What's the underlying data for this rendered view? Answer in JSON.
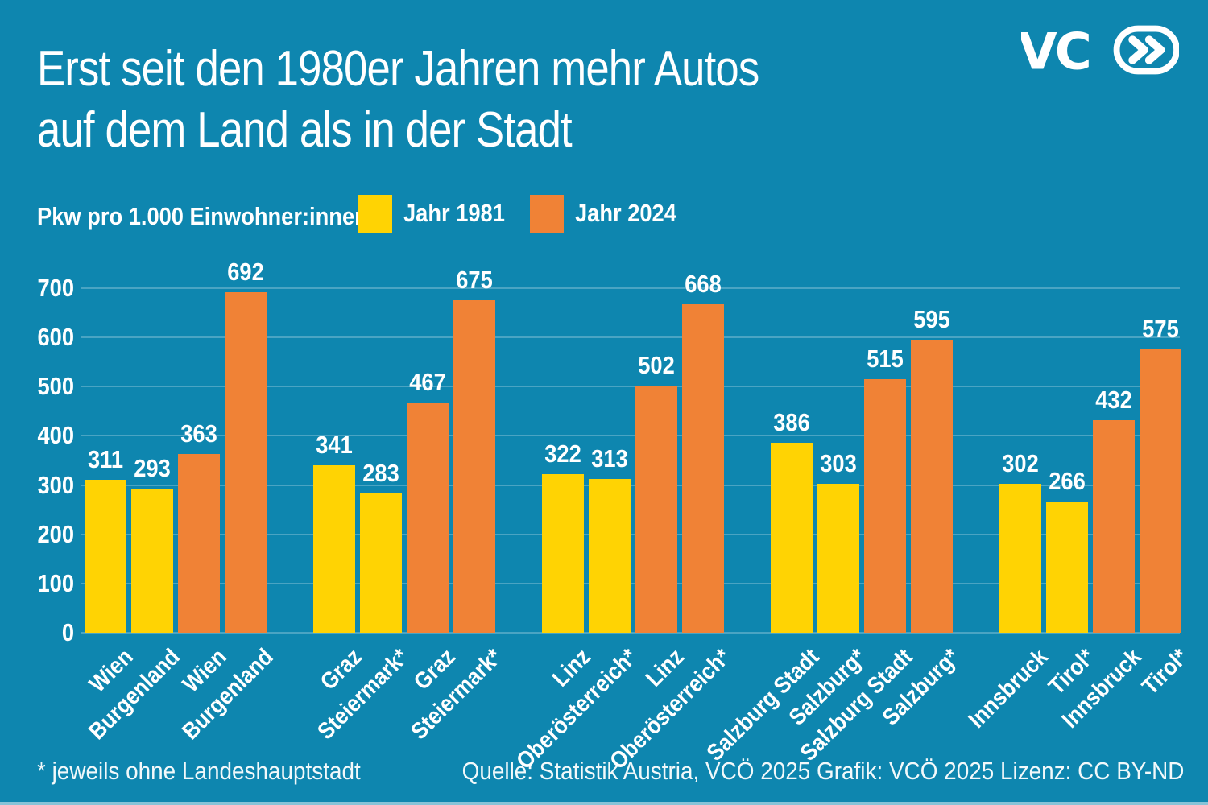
{
  "title": {
    "line1": "Erst seit den 1980er Jahren mehr Autos",
    "line2": "auf dem Land als in der Stadt"
  },
  "logo": {
    "text": "VC",
    "icon": "double-chevron-right-in-pill"
  },
  "legend": {
    "axis_label": "Pkw pro 1.000 Einwohner:innen",
    "items": [
      {
        "label": "Jahr 1981",
        "color": "#FFD303"
      },
      {
        "label": "Jahr 2024",
        "color": "#F08236"
      }
    ]
  },
  "footer": {
    "footnote": "* jeweils ohne Landeshauptstadt",
    "source": "Quelle: Statistik Austria, VCÖ 2025 Grafik: VCÖ 2025 Lizenz: CC BY-ND"
  },
  "colors": {
    "background": "#0E86AF",
    "gridline": "rgba(255,255,255,0.25)",
    "bar_1981": "#FFD303",
    "bar_2024": "#F08236",
    "text": "#FFFFFF"
  },
  "chart_data": {
    "type": "bar",
    "title": "Erst seit den 1980er Jahren mehr Autos auf dem Land als in der Stadt",
    "ylabel": "Pkw pro 1.000 Einwohner:innen",
    "xlabel": "",
    "ylim": [
      0,
      700
    ],
    "yticks": [
      0,
      100,
      200,
      300,
      400,
      500,
      600,
      700
    ],
    "grid": true,
    "legend_position": "top",
    "series": [
      {
        "name": "Jahr 1981",
        "color": "#FFD303"
      },
      {
        "name": "Jahr 2024",
        "color": "#F08236"
      }
    ],
    "groups": [
      {
        "region": "Wien / Burgenland",
        "bars": [
          {
            "label": "Wien",
            "year": "1981",
            "value": 311
          },
          {
            "label": "Burgenland",
            "year": "1981",
            "value": 293
          },
          {
            "label": "Wien",
            "year": "2024",
            "value": 363
          },
          {
            "label": "Burgenland",
            "year": "2024",
            "value": 692
          }
        ]
      },
      {
        "region": "Graz / Steiermark",
        "bars": [
          {
            "label": "Graz",
            "year": "1981",
            "value": 341
          },
          {
            "label": "Steiermark*",
            "year": "1981",
            "value": 283
          },
          {
            "label": "Graz",
            "year": "2024",
            "value": 467
          },
          {
            "label": "Steiermark*",
            "year": "2024",
            "value": 675
          }
        ]
      },
      {
        "region": "Linz / Oberösterreich",
        "bars": [
          {
            "label": "Linz",
            "year": "1981",
            "value": 322
          },
          {
            "label": "Oberösterreich*",
            "year": "1981",
            "value": 313
          },
          {
            "label": "Linz",
            "year": "2024",
            "value": 502
          },
          {
            "label": "Oberösterreich*",
            "year": "2024",
            "value": 668
          }
        ]
      },
      {
        "region": "Salzburg Stadt / Salzburg",
        "bars": [
          {
            "label": "Salzburg Stadt",
            "year": "1981",
            "value": 386
          },
          {
            "label": "Salzburg*",
            "year": "1981",
            "value": 303
          },
          {
            "label": "Salzburg Stadt",
            "year": "2024",
            "value": 515
          },
          {
            "label": "Salzburg*",
            "year": "2024",
            "value": 595
          }
        ]
      },
      {
        "region": "Innsbruck / Tirol",
        "bars": [
          {
            "label": "Innsbruck",
            "year": "1981",
            "value": 302
          },
          {
            "label": "Tirol*",
            "year": "1981",
            "value": 266
          },
          {
            "label": "Innsbruck",
            "year": "2024",
            "value": 432
          },
          {
            "label": "Tirol*",
            "year": "2024",
            "value": 575
          }
        ]
      }
    ]
  }
}
